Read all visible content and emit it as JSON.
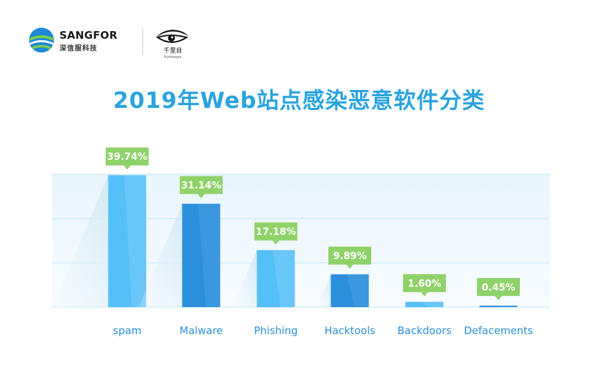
{
  "brand": {
    "name": "SANGFOR",
    "sub": "深信服科技",
    "partner_text": "千里目",
    "partner_sub": "Furtheeye"
  },
  "colors": {
    "title": "#2aa3e0",
    "bar_light": "#55bff7",
    "bar_dark": "#2b8fdc",
    "label_bg": "#8fd26a",
    "grid": "#bfe4f7",
    "axis_text": "#2a8fd8"
  },
  "chart_data": {
    "type": "bar",
    "title": "2019年Web站点感染恶意软件分类",
    "categories": [
      "spam",
      "Malware",
      "Phishing",
      "Hacktools",
      "Backdoors",
      "Defacements"
    ],
    "values": [
      39.74,
      31.14,
      17.18,
      9.89,
      1.6,
      0.45
    ],
    "data_labels": [
      "39.74%",
      "31.14%",
      "17.18%",
      "9.89%",
      "1.60%",
      "0.45%"
    ],
    "ylim": [
      0,
      40
    ],
    "grid": true,
    "xlabel": "",
    "ylabel": ""
  }
}
